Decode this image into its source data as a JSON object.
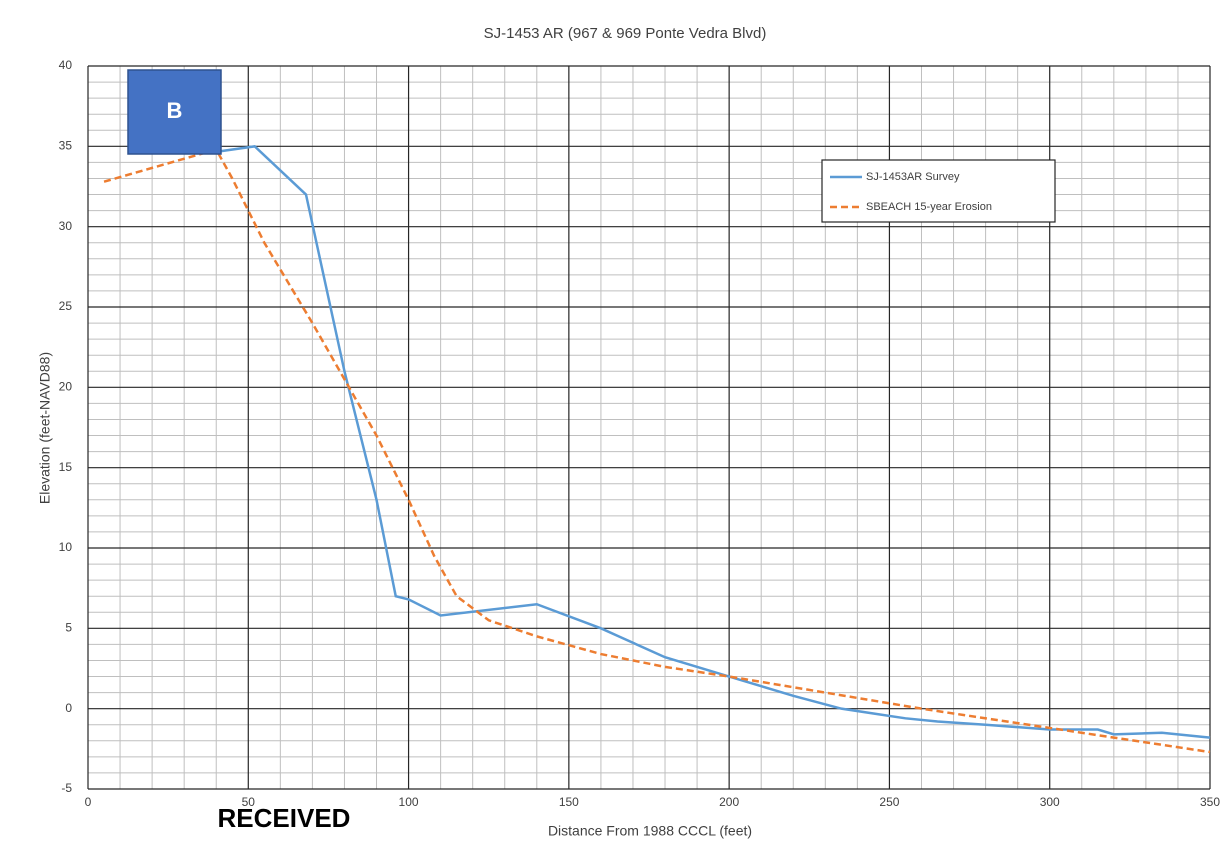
{
  "chart_data": {
    "type": "line",
    "title": "SJ-1453 AR (967 & 969 Ponte Vedra Blvd)",
    "x_label": "Distance From 1988 CCCL (feet)",
    "y_label": "Elevation (feet-NAVD88)",
    "xlim": [
      0,
      350
    ],
    "xticks": [
      0,
      50,
      100,
      150,
      200,
      250,
      300,
      350
    ],
    "ylim": [
      -5,
      40
    ],
    "yticks": [
      -5,
      0,
      5,
      10,
      15,
      20,
      25,
      30,
      35,
      40
    ],
    "grid": true,
    "minor_grid": true,
    "legend": "upper right",
    "annotations": [
      "B",
      "RECEIVED"
    ],
    "series": [
      {
        "name": "SJ-1453AR Survey",
        "color": "#5b9bd5",
        "dash": false,
        "x": [
          38,
          52,
          68,
          80,
          90,
          96,
          100,
          110,
          140,
          160,
          180,
          200,
          220,
          235,
          245,
          255,
          265,
          280,
          300,
          315,
          320,
          335,
          350
        ],
        "values": [
          34.6,
          35,
          32,
          21,
          13,
          7,
          6.8,
          5.8,
          6.5,
          5,
          3.2,
          2,
          0.8,
          0,
          -0.3,
          -0.6,
          -0.8,
          -1,
          -1.3,
          -1.3,
          -1.6,
          -1.5,
          -1.8
        ]
      },
      {
        "name": "SBEACH 15-year Erosion",
        "color": "#ed7d31",
        "dash": true,
        "x": [
          5,
          40,
          45,
          55,
          70,
          80,
          90,
          100,
          108,
          115,
          125,
          140,
          160,
          180,
          200,
          230,
          260,
          300,
          350
        ],
        "values": [
          32.8,
          34.8,
          33,
          29,
          24,
          20.5,
          17,
          13,
          9.5,
          7,
          5.5,
          4.5,
          3.4,
          2.6,
          2,
          1,
          0,
          -1.2,
          -2.7
        ]
      }
    ]
  }
}
